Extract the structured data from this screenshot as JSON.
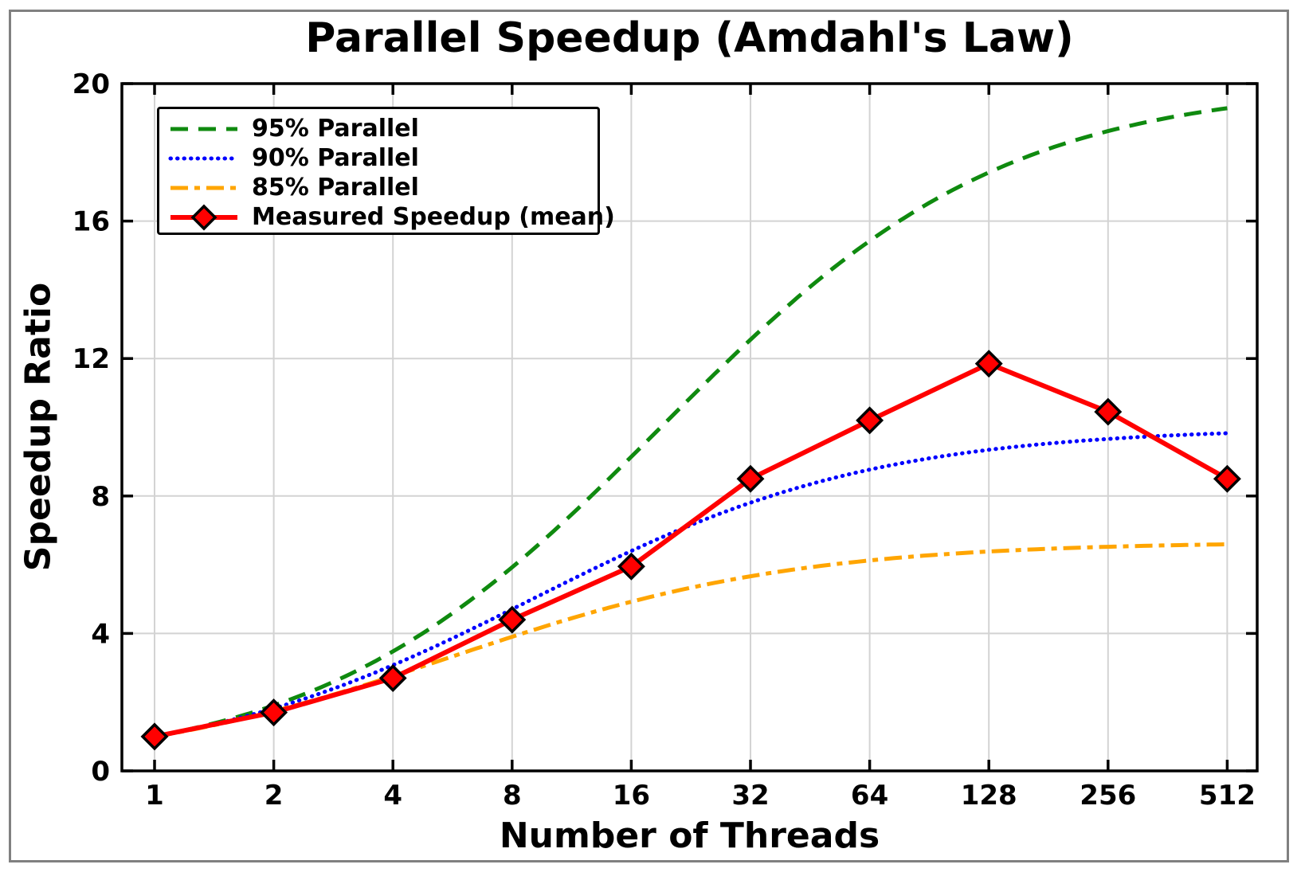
{
  "figure": {
    "background": "#ffffff",
    "border_color": "#808080",
    "axis_color": "#000000",
    "gridline_color": "#d3d3d3"
  },
  "chart_data": {
    "type": "line",
    "title": "Parallel Speedup (Amdahl's Law)",
    "xlabel": "Number of Threads",
    "ylabel": "Speedup Ratio",
    "x_scale": "log2",
    "categories": [
      1,
      2,
      4,
      8,
      16,
      32,
      64,
      128,
      256,
      512
    ],
    "yticks": [
      0,
      4,
      8,
      12,
      16,
      20
    ],
    "ylim": [
      0,
      20
    ],
    "grid": true,
    "legend_position": "top-left",
    "series": [
      {
        "name": "95% Parallel",
        "color": "#0f8a0f",
        "style": "dashed",
        "width": 5,
        "parallel_fraction": 0.95,
        "values": [
          1.0,
          1.9,
          3.48,
          5.93,
          9.14,
          12.55,
          15.42,
          17.42,
          18.62,
          19.28
        ]
      },
      {
        "name": "90% Parallel",
        "color": "#0000ff",
        "style": "dotted",
        "width": 5,
        "parallel_fraction": 0.9,
        "values": [
          1.0,
          1.82,
          3.08,
          4.71,
          6.4,
          7.8,
          8.77,
          9.34,
          9.66,
          9.83
        ]
      },
      {
        "name": "85% Parallel",
        "color": "#ffa500",
        "style": "dashdot",
        "width": 5,
        "parallel_fraction": 0.85,
        "values": [
          1.0,
          1.74,
          2.76,
          3.9,
          4.92,
          5.67,
          6.14,
          6.4,
          6.54,
          6.61
        ]
      },
      {
        "name": "Measured Speedup (mean)",
        "color": "#ff0000",
        "style": "solid",
        "width": 6,
        "marker": "diamond",
        "marker_color": "#ff0000",
        "marker_edge_color": "#000000",
        "values": [
          1.0,
          1.7,
          2.7,
          4.4,
          5.95,
          8.5,
          10.2,
          11.85,
          10.45,
          8.5
        ]
      }
    ]
  }
}
